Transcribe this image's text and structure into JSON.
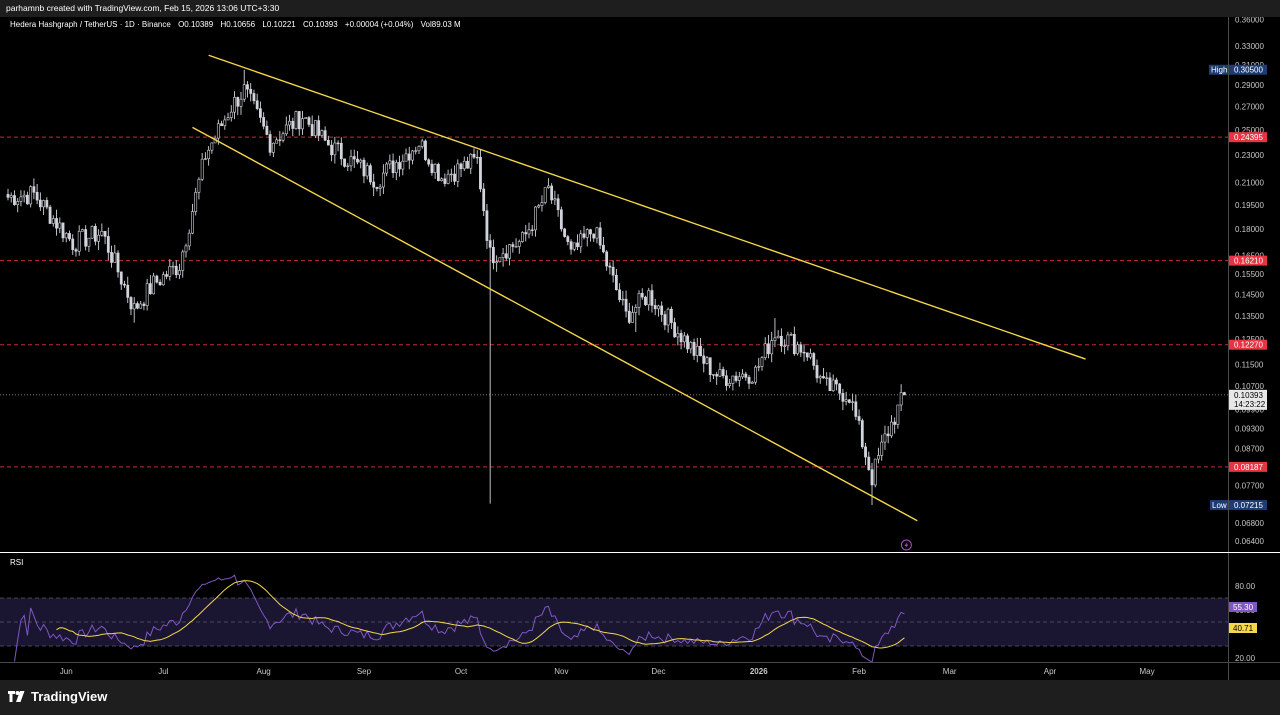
{
  "header": {
    "caption": "parhamnb created with TradingView.com, Feb 15, 2026 13:06 UTC+3:30"
  },
  "legend": {
    "symbol": "Hedera Hashgraph / TetherUS · 1D · Binance",
    "open": "O0.10389",
    "high": "H0.10656",
    "low": "L0.10221",
    "close": "C0.10393",
    "change": "+0.00004 (+0.04%)",
    "volume": "Vol89.03 M"
  },
  "rsi_panel": {
    "label": "RSI",
    "ticks": [
      "80.00",
      "60.00",
      "20.00"
    ],
    "rsi_value": "55.30",
    "ma_value": "40.71"
  },
  "footer": {
    "brand": "TradingView"
  },
  "colors": {
    "background": "#000000",
    "candle": "#d1d4dc",
    "trendline": "#f5d74a",
    "level_line": "#c92a3a",
    "level_label": "#e53543",
    "high_low_tag": "#1f3b73",
    "rsi_line": "#7e57c2",
    "rsi_ma": "#f5d74a",
    "rsi_band": "#1a1530",
    "rsi_price_tag": "#7e57c2",
    "rsi_ma_tag": "#f5d74a"
  },
  "chart_data": {
    "type": "candlestick",
    "x_axis_labels": [
      "Jun",
      "Jul",
      "Aug",
      "Sep",
      "Oct",
      "Nov",
      "Dec",
      "2026",
      "Feb",
      "Mar",
      "Apr",
      "May"
    ],
    "y_axis_ticks": [
      "0.36000",
      "0.33000",
      "0.31000",
      "0.29000",
      "0.27000",
      "0.25000",
      "0.23000",
      "0.21000",
      "0.19500",
      "0.18000",
      "0.16500",
      "0.15500",
      "0.14500",
      "0.13500",
      "0.12500",
      "0.11500",
      "0.10700",
      "0.09900",
      "0.09300",
      "0.08700",
      "0.07700",
      "0.06800",
      "0.06400"
    ],
    "y_range": [
      0.063,
      0.362
    ],
    "y_scale": "log",
    "horizontal_levels": [
      "0.24395",
      "0.16210",
      "0.12270",
      "0.08187"
    ],
    "high_tag": {
      "label": "High",
      "value": "0.30500"
    },
    "low_tag": {
      "label": "Low",
      "value": "0.07215"
    },
    "last_price": {
      "value": "0.10393",
      "countdown": "14:23:22"
    },
    "trendlines": [
      {
        "from_date": "2025-07-15",
        "from": 0.32,
        "to_date": "2026-04-12",
        "to": 0.117
      },
      {
        "from_date": "2025-07-10",
        "from": 0.252,
        "to_date": "2026-02-19",
        "to": 0.0685
      }
    ],
    "series": [
      {
        "name": "HBAR/USDT",
        "start_date": "2025-05-14",
        "interval": "1D",
        "close_anchors": [
          {
            "date": "2025-05-14",
            "value": 0.2
          },
          {
            "date": "2025-05-22",
            "value": 0.202
          },
          {
            "date": "2025-06-03",
            "value": 0.172
          },
          {
            "date": "2025-06-12",
            "value": 0.178
          },
          {
            "date": "2025-06-22",
            "value": 0.138
          },
          {
            "date": "2025-06-28",
            "value": 0.15
          },
          {
            "date": "2025-07-06",
            "value": 0.16
          },
          {
            "date": "2025-07-14",
            "value": 0.23
          },
          {
            "date": "2025-07-22",
            "value": 0.27
          },
          {
            "date": "2025-07-26",
            "value": 0.285
          },
          {
            "date": "2025-08-03",
            "value": 0.24
          },
          {
            "date": "2025-08-13",
            "value": 0.262
          },
          {
            "date": "2025-08-20",
            "value": 0.24
          },
          {
            "date": "2025-09-05",
            "value": 0.212
          },
          {
            "date": "2025-09-18",
            "value": 0.24
          },
          {
            "date": "2025-09-25",
            "value": 0.214
          },
          {
            "date": "2025-10-06",
            "value": 0.226
          },
          {
            "date": "2025-10-10",
            "value": 0.165
          },
          {
            "date": "2025-10-20",
            "value": 0.173
          },
          {
            "date": "2025-10-28",
            "value": 0.205
          },
          {
            "date": "2025-11-04",
            "value": 0.165
          },
          {
            "date": "2025-11-11",
            "value": 0.18
          },
          {
            "date": "2025-11-21",
            "value": 0.135
          },
          {
            "date": "2025-11-28",
            "value": 0.145
          },
          {
            "date": "2025-12-12",
            "value": 0.12
          },
          {
            "date": "2025-12-20",
            "value": 0.11
          },
          {
            "date": "2025-12-31",
            "value": 0.112
          },
          {
            "date": "2026-01-06",
            "value": 0.128
          },
          {
            "date": "2026-01-16",
            "value": 0.12
          },
          {
            "date": "2026-01-21",
            "value": 0.107
          },
          {
            "date": "2026-01-29",
            "value": 0.104
          },
          {
            "date": "2026-02-05",
            "value": 0.079
          },
          {
            "date": "2026-02-09",
            "value": 0.09
          },
          {
            "date": "2026-02-15",
            "value": 0.1039
          }
        ],
        "wick_extremes": [
          {
            "date": "2025-06-22",
            "low": 0.132
          },
          {
            "date": "2025-07-26",
            "high": 0.305
          },
          {
            "date": "2025-10-10",
            "low": 0.0725
          },
          {
            "date": "2025-10-28",
            "high": 0.213
          },
          {
            "date": "2025-11-24",
            "low": 0.128
          },
          {
            "date": "2026-01-06",
            "high": 0.134
          },
          {
            "date": "2026-02-05",
            "low": 0.07215
          }
        ]
      }
    ]
  }
}
